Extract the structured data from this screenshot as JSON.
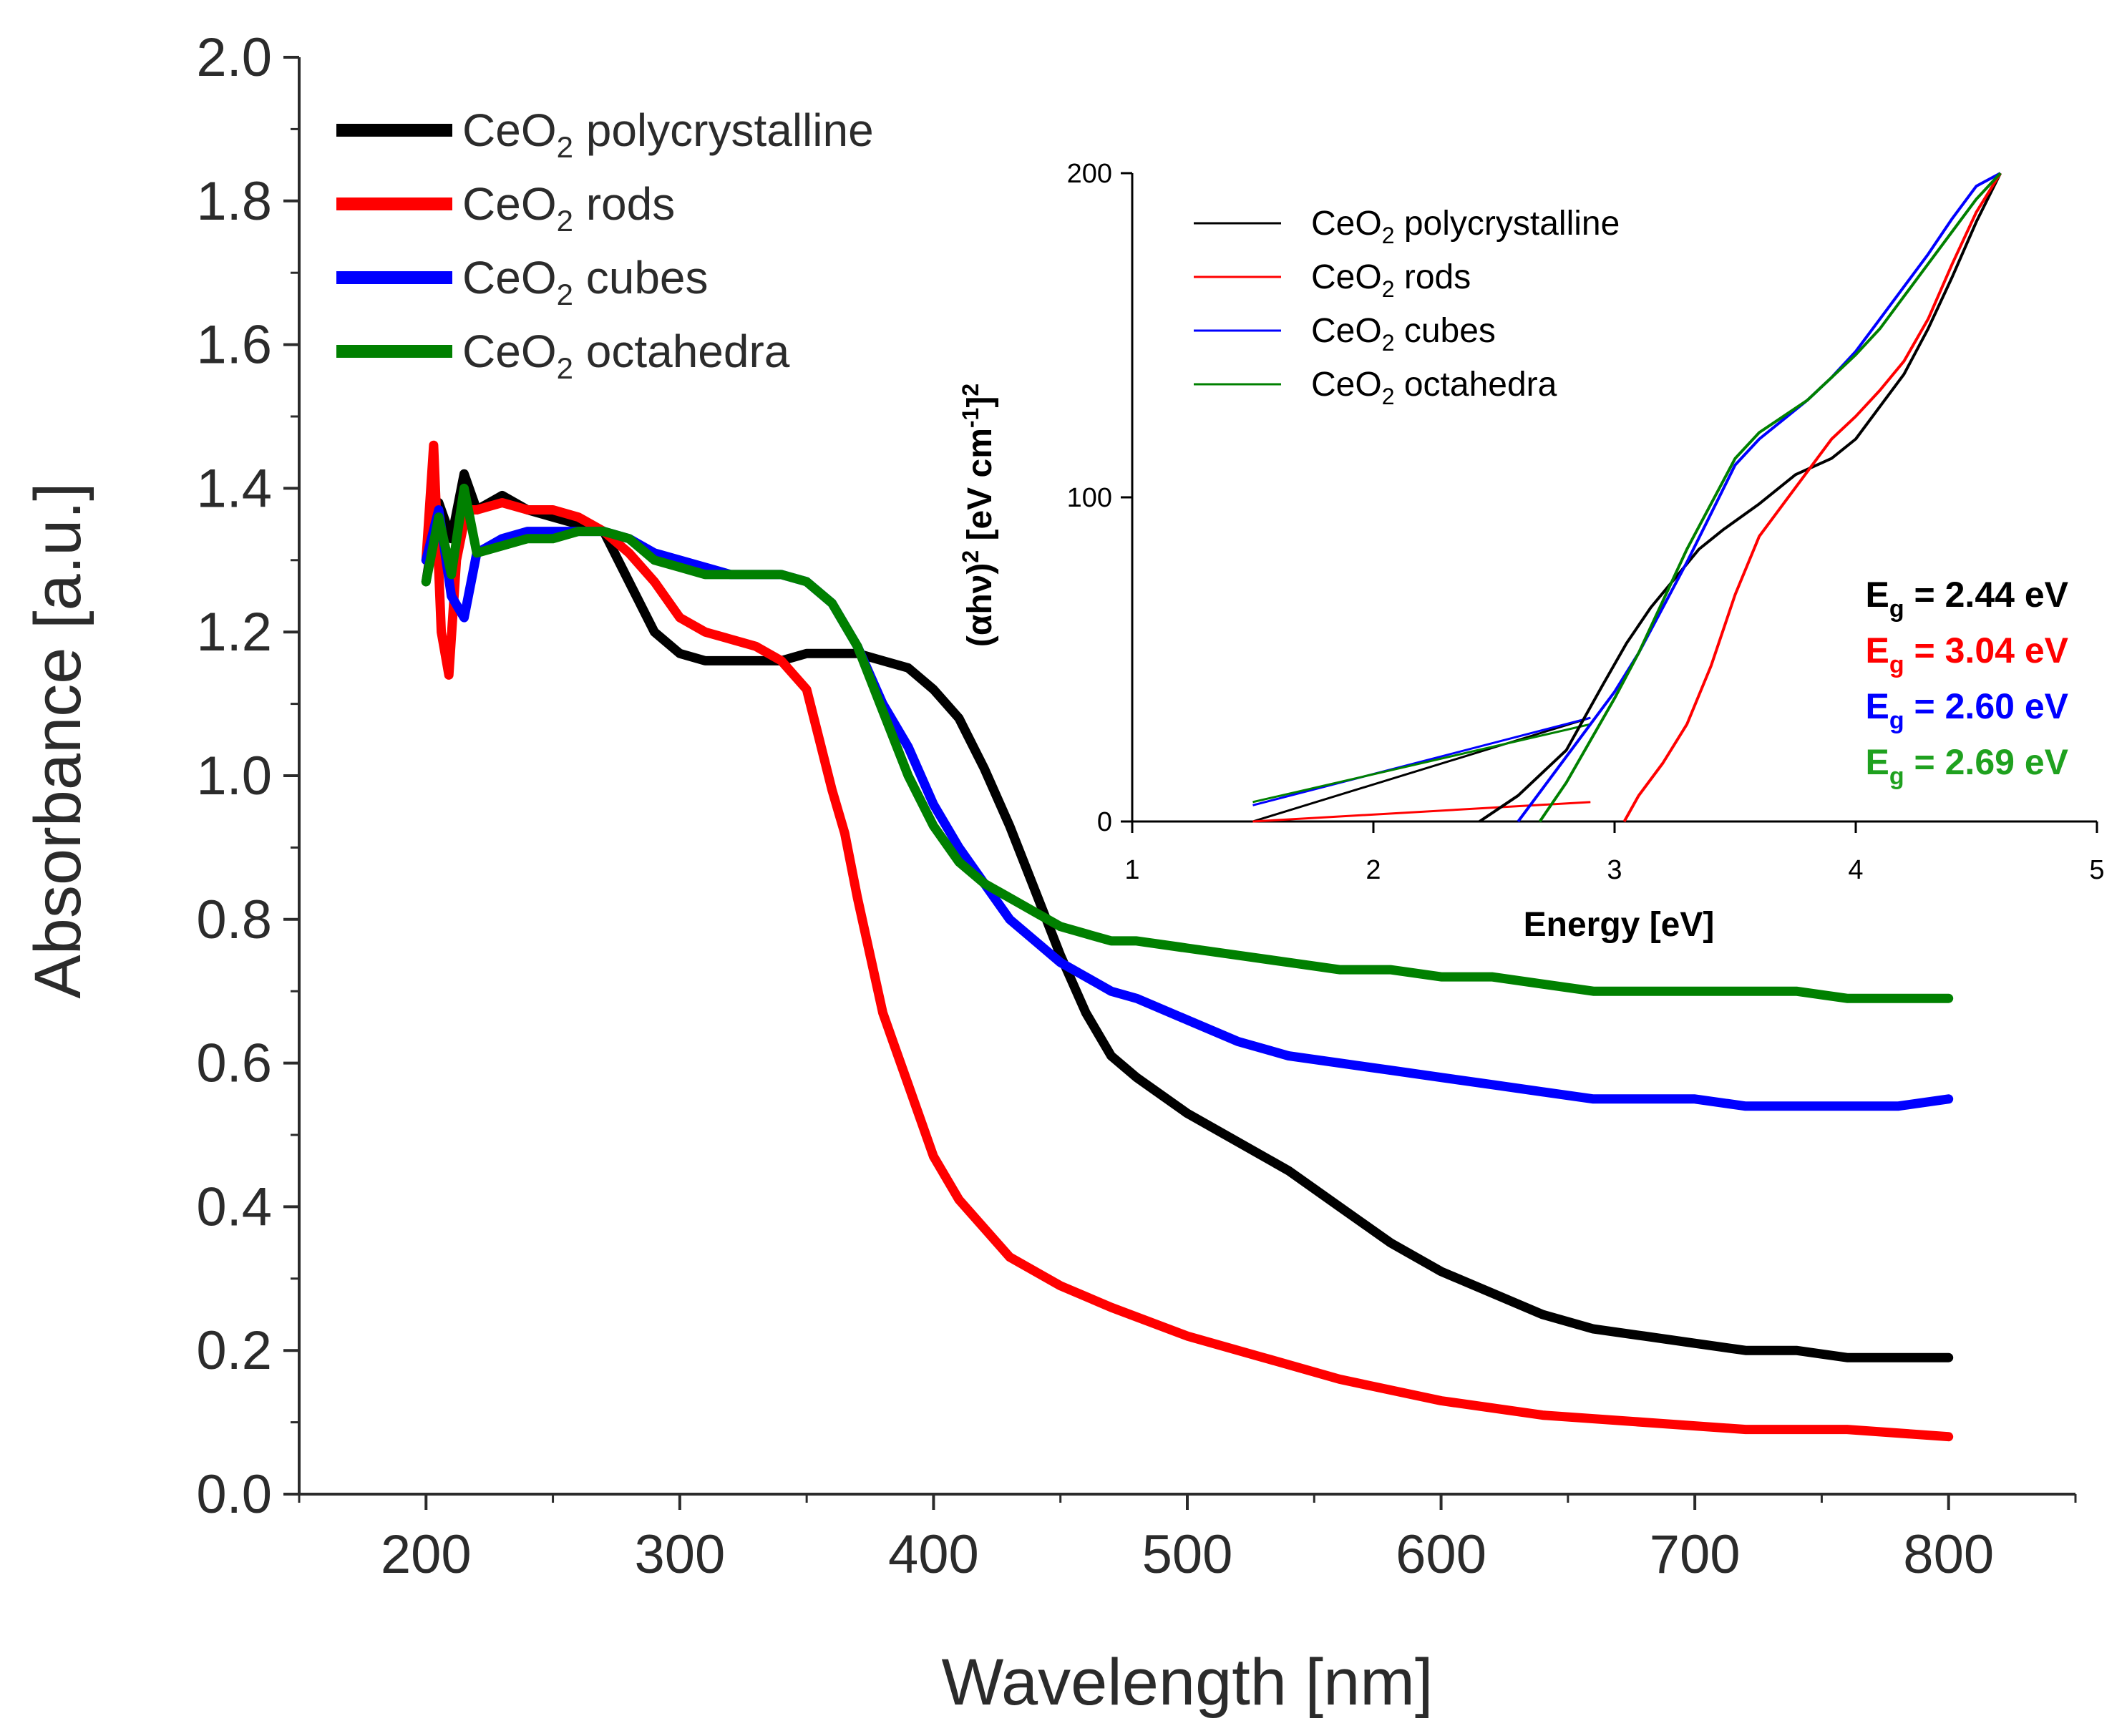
{
  "chart_data": [
    {
      "type": "line",
      "title": "",
      "xlabel": "Wavelength [nm]",
      "ylabel": "Absorbance [a.u.]",
      "xlim": [
        150,
        850
      ],
      "ylim": [
        0.0,
        2.0
      ],
      "xticks": [
        200,
        300,
        400,
        500,
        600,
        700,
        800
      ],
      "xtick_labels": [
        "200",
        "300",
        "400",
        "500",
        "600",
        "700",
        "800"
      ],
      "yticks": [
        0.0,
        0.2,
        0.4,
        0.6,
        0.8,
        1.0,
        1.2,
        1.4,
        1.6,
        1.8,
        2.0
      ],
      "ytick_labels": [
        "0.0",
        "0.2",
        "0.4",
        "0.6",
        "0.8",
        "1.0",
        "1.2",
        "1.4",
        "1.6",
        "1.8",
        "2.0"
      ],
      "legend_position": "top-left",
      "grid": false,
      "series": [
        {
          "name": "CeO2 polycrystalline",
          "label_main": "CeO",
          "label_sub": "2",
          "label_rest": " polycrystalline",
          "color": "#000000",
          "x": [
            200,
            205,
            210,
            215,
            220,
            230,
            240,
            250,
            260,
            270,
            280,
            290,
            300,
            310,
            320,
            330,
            340,
            350,
            360,
            370,
            380,
            390,
            400,
            410,
            420,
            430,
            440,
            450,
            460,
            470,
            480,
            500,
            520,
            540,
            560,
            580,
            600,
            620,
            640,
            660,
            680,
            700,
            720,
            740,
            760,
            780,
            800
          ],
          "y": [
            1.27,
            1.38,
            1.33,
            1.42,
            1.37,
            1.39,
            1.37,
            1.36,
            1.35,
            1.34,
            1.27,
            1.2,
            1.17,
            1.16,
            1.16,
            1.16,
            1.16,
            1.17,
            1.17,
            1.17,
            1.16,
            1.15,
            1.12,
            1.08,
            1.01,
            0.93,
            0.84,
            0.75,
            0.67,
            0.61,
            0.58,
            0.53,
            0.49,
            0.45,
            0.4,
            0.35,
            0.31,
            0.28,
            0.25,
            0.23,
            0.22,
            0.21,
            0.2,
            0.2,
            0.19,
            0.19,
            0.19
          ]
        },
        {
          "name": "CeO2 rods",
          "label_main": "CeO",
          "label_sub": "2",
          "label_rest": " rods",
          "color": "#ff0000",
          "x": [
            200,
            203,
            206,
            209,
            212,
            216,
            220,
            230,
            240,
            250,
            260,
            270,
            280,
            290,
            300,
            310,
            320,
            330,
            340,
            350,
            355,
            360,
            365,
            370,
            375,
            380,
            385,
            390,
            395,
            400,
            410,
            420,
            430,
            450,
            470,
            500,
            530,
            560,
            600,
            640,
            680,
            720,
            760,
            800
          ],
          "y": [
            1.3,
            1.46,
            1.2,
            1.14,
            1.3,
            1.37,
            1.37,
            1.38,
            1.37,
            1.37,
            1.36,
            1.34,
            1.31,
            1.27,
            1.22,
            1.2,
            1.19,
            1.18,
            1.16,
            1.12,
            1.05,
            0.98,
            0.92,
            0.83,
            0.75,
            0.67,
            0.62,
            0.57,
            0.52,
            0.47,
            0.41,
            0.37,
            0.33,
            0.29,
            0.26,
            0.22,
            0.19,
            0.16,
            0.13,
            0.11,
            0.1,
            0.09,
            0.09,
            0.08
          ]
        },
        {
          "name": "CeO2 cubes",
          "label_main": "CeO",
          "label_sub": "2",
          "label_rest": " cubes",
          "color": "#0000ff",
          "x": [
            200,
            205,
            210,
            215,
            220,
            230,
            240,
            250,
            260,
            270,
            280,
            290,
            300,
            310,
            320,
            330,
            340,
            350,
            360,
            370,
            380,
            390,
            400,
            410,
            420,
            430,
            440,
            450,
            460,
            470,
            480,
            500,
            520,
            540,
            560,
            580,
            600,
            620,
            640,
            660,
            680,
            700,
            720,
            740,
            760,
            780,
            800
          ],
          "y": [
            1.3,
            1.37,
            1.25,
            1.22,
            1.31,
            1.33,
            1.34,
            1.34,
            1.34,
            1.34,
            1.33,
            1.31,
            1.3,
            1.29,
            1.28,
            1.28,
            1.28,
            1.27,
            1.24,
            1.18,
            1.1,
            1.04,
            0.96,
            0.9,
            0.85,
            0.8,
            0.77,
            0.74,
            0.72,
            0.7,
            0.69,
            0.66,
            0.63,
            0.61,
            0.6,
            0.59,
            0.58,
            0.57,
            0.56,
            0.55,
            0.55,
            0.55,
            0.54,
            0.54,
            0.54,
            0.54,
            0.55
          ]
        },
        {
          "name": "CeO2 octahedra",
          "label_main": "CeO",
          "label_sub": "2",
          "label_rest": " octahedra",
          "color": "#008000",
          "x": [
            200,
            205,
            210,
            215,
            220,
            230,
            240,
            250,
            260,
            270,
            280,
            290,
            300,
            310,
            320,
            330,
            340,
            350,
            360,
            370,
            380,
            390,
            400,
            410,
            420,
            430,
            440,
            450,
            460,
            470,
            480,
            500,
            520,
            540,
            560,
            580,
            600,
            620,
            640,
            660,
            680,
            700,
            720,
            740,
            760,
            780,
            800
          ],
          "y": [
            1.27,
            1.36,
            1.28,
            1.4,
            1.31,
            1.32,
            1.33,
            1.33,
            1.34,
            1.34,
            1.33,
            1.3,
            1.29,
            1.28,
            1.28,
            1.28,
            1.28,
            1.27,
            1.24,
            1.18,
            1.09,
            1.0,
            0.93,
            0.88,
            0.85,
            0.83,
            0.81,
            0.79,
            0.78,
            0.77,
            0.77,
            0.76,
            0.75,
            0.74,
            0.73,
            0.73,
            0.72,
            0.72,
            0.71,
            0.7,
            0.7,
            0.7,
            0.7,
            0.7,
            0.69,
            0.69,
            0.69
          ]
        }
      ]
    },
    {
      "type": "line",
      "title": "",
      "xlabel": "Energy [eV]",
      "ylabel_parts": [
        "(αhν)",
        "2",
        " [eV cm",
        "-1",
        "]",
        "2"
      ],
      "xlim": [
        1,
        5
      ],
      "ylim": [
        0,
        200
      ],
      "xticks": [
        1,
        2,
        3,
        4,
        5
      ],
      "xtick_labels": [
        "1",
        "2",
        "3",
        "4",
        "5"
      ],
      "yticks": [
        0,
        100,
        200
      ],
      "ytick_labels": [
        "0",
        "100",
        "200"
      ],
      "legend_position": "top-left",
      "grid": false,
      "series": [
        {
          "name": "CeO2 polycrystalline",
          "label_main": "CeO",
          "label_sub": "2",
          "label_rest": " polycrystalline",
          "color": "#000000",
          "x": [
            2.44,
            2.6,
            2.8,
            2.95,
            3.05,
            3.15,
            3.25,
            3.35,
            3.45,
            3.6,
            3.75,
            3.9,
            4.0,
            4.1,
            4.2,
            4.3,
            4.4,
            4.5,
            4.6
          ],
          "y": [
            0,
            8,
            22,
            42,
            55,
            66,
            75,
            84,
            90,
            98,
            107,
            112,
            118,
            128,
            138,
            152,
            168,
            185,
            200
          ]
        },
        {
          "name": "CeO2 rods",
          "label_main": "CeO",
          "label_sub": "2",
          "label_rest": " rods",
          "color": "#ff0000",
          "x": [
            3.04,
            3.1,
            3.2,
            3.3,
            3.4,
            3.5,
            3.6,
            3.7,
            3.8,
            3.9,
            4.0,
            4.1,
            4.2,
            4.3,
            4.4,
            4.5,
            4.6
          ],
          "y": [
            0,
            8,
            18,
            30,
            48,
            70,
            88,
            98,
            108,
            118,
            125,
            133,
            142,
            155,
            172,
            188,
            200
          ]
        },
        {
          "name": "CeO2 cubes",
          "label_main": "CeO",
          "label_sub": "2",
          "label_rest": " cubes",
          "color": "#0000ff",
          "x": [
            2.6,
            2.75,
            2.9,
            3.0,
            3.1,
            3.2,
            3.3,
            3.4,
            3.5,
            3.6,
            3.7,
            3.8,
            3.9,
            4.0,
            4.1,
            4.2,
            4.3,
            4.4,
            4.5,
            4.6
          ],
          "y": [
            0,
            15,
            30,
            40,
            52,
            66,
            80,
            95,
            110,
            118,
            124,
            130,
            137,
            145,
            155,
            165,
            175,
            186,
            196,
            200
          ]
        },
        {
          "name": "CeO2 octahedra",
          "label_main": "CeO",
          "label_sub": "2",
          "label_rest": " octahedra",
          "color": "#008000",
          "x": [
            2.69,
            2.8,
            2.9,
            3.0,
            3.1,
            3.2,
            3.3,
            3.4,
            3.5,
            3.6,
            3.7,
            3.8,
            3.9,
            4.0,
            4.1,
            4.2,
            4.3,
            4.4,
            4.5,
            4.6
          ],
          "y": [
            0,
            12,
            25,
            38,
            52,
            68,
            84,
            98,
            112,
            120,
            125,
            130,
            137,
            144,
            152,
            162,
            172,
            182,
            192,
            200
          ]
        }
      ],
      "tangent_lines": [
        {
          "color": "#000000",
          "x": [
            1.5,
            2.9
          ],
          "y": [
            0,
            32
          ]
        },
        {
          "color": "#ff0000",
          "x": [
            1.5,
            2.9
          ],
          "y": [
            0,
            6
          ]
        },
        {
          "color": "#0000ff",
          "x": [
            1.5,
            2.9
          ],
          "y": [
            5,
            32
          ]
        },
        {
          "color": "#008000",
          "x": [
            1.5,
            2.9
          ],
          "y": [
            6,
            30
          ]
        }
      ],
      "annotations": [
        {
          "prefix": "E",
          "sub": "g",
          "text": " = 2.44 eV",
          "color": "#000000"
        },
        {
          "prefix": "E",
          "sub": "g",
          "text": " = 3.04 eV",
          "color": "#ff0000"
        },
        {
          "prefix": "E",
          "sub": "g",
          "text": " = 2.60 eV",
          "color": "#0000ff"
        },
        {
          "prefix": "E",
          "sub": "g",
          "text": " = 2.69 eV",
          "color": "#1fa11f"
        }
      ]
    }
  ]
}
